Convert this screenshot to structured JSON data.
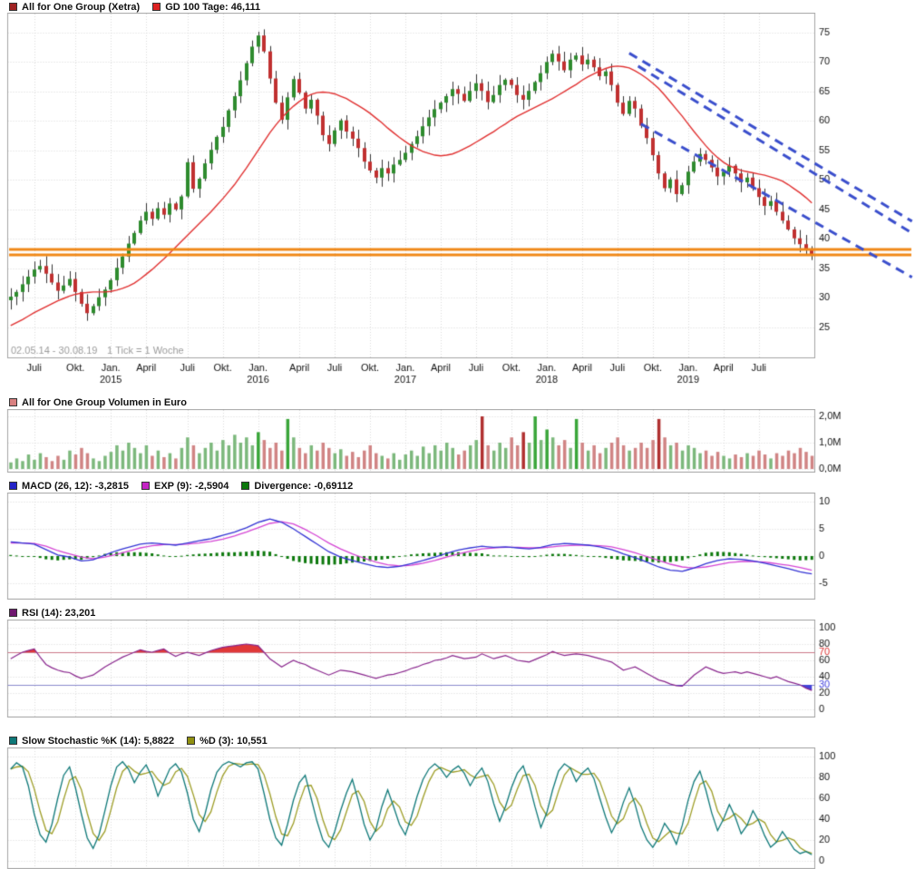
{
  "legends": {
    "main": [
      {
        "swatch": "#a02222",
        "label": "All for One Group (Xetra)"
      },
      {
        "swatch": "#dd2222",
        "label": "GD 100 Tage: 46,111"
      }
    ],
    "volume": [
      {
        "swatch": "#d88080",
        "label": "All for One Group Volumen in Euro"
      }
    ],
    "macd": [
      {
        "swatch": "#2424c8",
        "label": "MACD (26, 12): -3,2815"
      },
      {
        "swatch": "#c424c4",
        "label": "EXP (9): -2,5904"
      },
      {
        "swatch": "#0c780c",
        "label": "Divergence: -0,69112"
      }
    ],
    "rsi": [
      {
        "swatch": "#701870",
        "label": "RSI (14): 23,201"
      }
    ],
    "stoch": [
      {
        "swatch": "#0e7878",
        "label": "Slow Stochastic %K (14): 5,8822"
      },
      {
        "swatch": "#909010",
        "label": "%D (3): 10,551"
      }
    ]
  },
  "colors": {
    "grid": "#d9d9d9",
    "border": "#a3a3a3",
    "axis_text": "#111111",
    "note_text": "#9b9b9b",
    "candle_up": "#2e8b2e",
    "candle_down": "#c03030",
    "wick": "#333333",
    "ma": "#e03030",
    "hline": "#f08818",
    "trend": "#3a4ecc",
    "vol_up": "#7cb87c",
    "vol_down": "#d08484",
    "vol_up_hi": "#3aa63a",
    "vol_down_hi": "#b03030",
    "macd": "#3434d4",
    "macd_signal": "#d444d4",
    "macd_hist": "#0c780c",
    "rsi": "#88248c",
    "rsi_hi_line": "#cc7788",
    "rsi_lo_line": "#8888cc",
    "rsi_hi_fill": "#e03838",
    "rsi_lo_fill": "#4444d8",
    "rsi_hi_label": "#dd3333",
    "rsi_lo_label": "#4444dd",
    "stoch_k": "#0e7878",
    "stoch_d": "#9c9c24"
  },
  "chart_data": {
    "type": "candlestick+indicators",
    "title": "All for One Group (Xetra)",
    "interval": "1 Tick = 1 Woche",
    "date_range": "02.05.14 - 30.08.19",
    "footnote": "02.05.14 - 30.08.19",
    "tick_note": "1 Tick = 1 Woche",
    "x_ticks": [
      {
        "i": 4,
        "m": "Juli"
      },
      {
        "i": 11,
        "m": "Okt."
      },
      {
        "i": 17,
        "m": "Jan.",
        "y": "2015"
      },
      {
        "i": 23,
        "m": "April"
      },
      {
        "i": 30,
        "m": "Juli"
      },
      {
        "i": 36,
        "m": "Okt."
      },
      {
        "i": 42,
        "m": "Jan.",
        "y": "2016"
      },
      {
        "i": 49,
        "m": "April"
      },
      {
        "i": 55,
        "m": "Juli"
      },
      {
        "i": 61,
        "m": "Okt."
      },
      {
        "i": 67,
        "m": "Jan.",
        "y": "2017"
      },
      {
        "i": 73,
        "m": "April"
      },
      {
        "i": 79,
        "m": "Juli"
      },
      {
        "i": 85,
        "m": "Okt."
      },
      {
        "i": 91,
        "m": "Jan.",
        "y": "2018"
      },
      {
        "i": 97,
        "m": "April"
      },
      {
        "i": 103,
        "m": "Juli"
      },
      {
        "i": 109,
        "m": "Okt."
      },
      {
        "i": 115,
        "m": "Jan.",
        "y": "2019"
      },
      {
        "i": 121,
        "m": "April"
      },
      {
        "i": 127,
        "m": "Juli"
      }
    ],
    "price": {
      "ylim": [
        19.9,
        77.9
      ],
      "yticks": [
        75,
        70,
        65,
        60,
        55,
        50,
        45,
        40,
        35,
        30,
        25
      ],
      "close": [
        30.2,
        31.0,
        32.3,
        33.6,
        34.8,
        35.4,
        34.1,
        32.6,
        31.2,
        32.1,
        33.2,
        31.0,
        29.0,
        27.4,
        28.6,
        30.1,
        31.4,
        33.0,
        35.1,
        37.0,
        39.2,
        41.0,
        43.1,
        44.6,
        43.4,
        45.2,
        44.1,
        46.0,
        45.0,
        47.2,
        53.0,
        48.5,
        50.2,
        52.8,
        55.1,
        57.3,
        59.0,
        61.8,
        64.2,
        66.9,
        69.8,
        72.6,
        74.5,
        71.8,
        67.2,
        63.1,
        60.2,
        64.0,
        67.1,
        64.8,
        62.1,
        63.6,
        60.9,
        57.6,
        56.1,
        58.4,
        60.1,
        58.2,
        57.0,
        55.4,
        53.1,
        51.6,
        50.4,
        52.0,
        51.1,
        52.6,
        53.4,
        54.6,
        56.1,
        57.4,
        59.1,
        60.6,
        62.0,
        63.1,
        64.2,
        65.4,
        64.6,
        63.4,
        65.1,
        66.4,
        65.1,
        63.2,
        64.4,
        66.1,
        67.0,
        66.1,
        64.4,
        63.6,
        65.1,
        66.6,
        68.1,
        70.0,
        71.4,
        70.1,
        68.6,
        70.4,
        71.1,
        69.6,
        70.4,
        69.1,
        67.6,
        68.4,
        66.1,
        63.1,
        61.2,
        63.4,
        62.1,
        59.2,
        57.1,
        54.2,
        51.1,
        48.6,
        50.1,
        47.6,
        49.1,
        51.4,
        53.1,
        54.4,
        53.4,
        52.1,
        50.6,
        51.4,
        52.4,
        51.1,
        49.6,
        50.4,
        48.6,
        47.1,
        45.6,
        46.4,
        44.6,
        43.1,
        41.6,
        40.1,
        39.1,
        38.1,
        37.4
      ],
      "ma100": [
        25.3,
        25.8,
        26.3,
        26.9,
        27.5,
        28.0,
        28.5,
        29.0,
        29.5,
        29.9,
        30.3,
        30.6,
        30.8,
        30.9,
        31.0,
        31.0,
        31.0,
        31.1,
        31.3,
        31.6,
        32.0,
        32.5,
        33.2,
        34.0,
        34.8,
        35.7,
        36.6,
        37.6,
        38.6,
        39.6,
        40.6,
        41.6,
        42.6,
        43.6,
        44.6,
        45.7,
        46.8,
        48.0,
        49.2,
        50.6,
        52.0,
        53.5,
        55.0,
        56.5,
        58.0,
        59.3,
        60.5,
        61.6,
        62.5,
        63.3,
        64.0,
        64.5,
        64.8,
        64.9,
        64.8,
        64.6,
        64.2,
        63.8,
        63.2,
        62.6,
        62.0,
        61.3,
        60.5,
        59.7,
        58.8,
        58.0,
        57.2,
        56.5,
        55.8,
        55.3,
        54.8,
        54.5,
        54.2,
        54.1,
        54.2,
        54.4,
        54.8,
        55.3,
        55.8,
        56.4,
        57.0,
        57.6,
        58.2,
        58.9,
        59.5,
        60.2,
        60.8,
        61.3,
        61.8,
        62.3,
        62.8,
        63.3,
        63.8,
        64.4,
        65.0,
        65.6,
        66.2,
        66.9,
        67.5,
        68.0,
        68.5,
        68.9,
        69.2,
        69.3,
        69.2,
        69.0,
        68.5,
        67.9,
        67.2,
        66.4,
        65.5,
        64.4,
        63.2,
        62.0,
        60.8,
        59.5,
        58.2,
        57.0,
        55.8,
        54.7,
        53.8,
        53.0,
        52.4,
        52.0,
        51.6,
        51.4,
        51.2,
        51.0,
        50.8,
        50.5,
        50.2,
        49.8,
        49.2,
        48.5,
        47.8,
        47.0,
        46.1
      ]
    },
    "overlays": {
      "hlines": [
        38.2,
        37.3
      ],
      "trendlines": [
        {
          "i1": 105.0,
          "v1": 71.5,
          "i2": 153,
          "v2": 43.0
        },
        {
          "i1": 106.5,
          "v1": 69.3,
          "i2": 153,
          "v2": 41.0
        },
        {
          "i1": 107.0,
          "v1": 59.5,
          "i2": 153,
          "v2": 33.5
        }
      ]
    },
    "volume": {
      "unit": "Euro",
      "yticks": [
        {
          "v": 2,
          "label": "2,0M"
        },
        {
          "v": 1,
          "label": "1,0M"
        },
        {
          "v": 0,
          "label": "0,0M"
        }
      ],
      "values": [
        0.25,
        0.4,
        0.3,
        0.55,
        0.35,
        0.6,
        0.45,
        0.3,
        0.5,
        0.35,
        0.7,
        0.55,
        0.8,
        0.6,
        0.4,
        0.3,
        0.5,
        0.65,
        0.9,
        0.7,
        1.0,
        0.8,
        0.6,
        0.9,
        0.5,
        0.7,
        0.45,
        0.6,
        0.4,
        0.8,
        1.2,
        0.9,
        0.6,
        0.8,
        1.0,
        0.7,
        1.1,
        0.9,
        1.3,
        1.0,
        1.2,
        0.9,
        1.4,
        1.1,
        0.8,
        1.0,
        0.7,
        1.9,
        1.2,
        0.8,
        0.6,
        0.9,
        0.7,
        1.0,
        0.8,
        0.6,
        0.75,
        0.5,
        0.65,
        0.45,
        0.7,
        0.9,
        0.6,
        0.5,
        0.4,
        0.6,
        0.35,
        0.55,
        0.7,
        0.5,
        0.85,
        0.6,
        0.9,
        0.7,
        1.0,
        0.8,
        0.55,
        0.7,
        0.9,
        1.1,
        2.0,
        0.9,
        0.7,
        1.0,
        0.8,
        1.2,
        0.9,
        1.4,
        1.0,
        2.0,
        1.1,
        1.5,
        1.2,
        0.9,
        1.1,
        0.8,
        1.9,
        1.0,
        0.7,
        0.9,
        0.6,
        0.8,
        1.0,
        1.2,
        0.9,
        0.7,
        0.8,
        1.0,
        0.8,
        1.1,
        1.9,
        1.2,
        0.9,
        1.0,
        0.7,
        0.9,
        0.8,
        0.6,
        0.7,
        0.5,
        0.65,
        0.5,
        0.4,
        0.55,
        0.45,
        0.6,
        0.5,
        0.7,
        0.55,
        0.4,
        0.6,
        0.5,
        0.7,
        0.6,
        0.8,
        0.65,
        0.5
      ]
    },
    "macd": {
      "yticks": [
        10,
        5,
        0,
        -5
      ],
      "macd": [
        2.6,
        2.5,
        2.4,
        2.3,
        2.2,
        1.7,
        1.2,
        0.7,
        0.2,
        0.0,
        -0.2,
        -0.55,
        -0.9,
        -0.8,
        -0.7,
        -0.25,
        0.2,
        0.6,
        1.0,
        1.3,
        1.6,
        1.9,
        2.2,
        2.3,
        2.4,
        2.3,
        2.2,
        2.1,
        2.0,
        2.2,
        2.4,
        2.6,
        2.8,
        3.0,
        3.2,
        3.5,
        3.8,
        4.1,
        4.4,
        4.8,
        5.2,
        5.7,
        6.2,
        6.5,
        6.8,
        6.5,
        6.2,
        5.6,
        5.0,
        4.3,
        3.6,
        2.9,
        2.2,
        1.5,
        0.8,
        0.3,
        -0.2,
        -0.5,
        -0.8,
        -1.1,
        -1.4,
        -1.65,
        -1.9,
        -2.0,
        -2.1,
        -2.0,
        -1.9,
        -1.65,
        -1.4,
        -1.1,
        -0.8,
        -0.5,
        -0.2,
        0.15,
        0.5,
        0.8,
        1.1,
        1.3,
        1.5,
        1.65,
        1.8,
        1.7,
        1.6,
        1.65,
        1.7,
        1.6,
        1.5,
        1.4,
        1.3,
        1.45,
        1.6,
        1.85,
        2.1,
        2.2,
        2.3,
        2.25,
        2.2,
        2.1,
        2.0,
        1.85,
        1.7,
        1.45,
        1.2,
        0.8,
        0.4,
        0.05,
        -0.3,
        -0.7,
        -1.1,
        -1.55,
        -2.0,
        -2.3,
        -2.6,
        -2.7,
        -2.8,
        -2.5,
        -2.2,
        -1.8,
        -1.4,
        -1.1,
        -0.8,
        -0.65,
        -0.5,
        -0.55,
        -0.6,
        -0.75,
        -0.9,
        -1.1,
        -1.3,
        -1.55,
        -1.8,
        -2.05,
        -2.3,
        -2.6,
        -2.9,
        -3.1,
        -3.28
      ],
      "signal": [
        2.4,
        2.4,
        2.4,
        2.35,
        2.3,
        2.05,
        1.8,
        1.4,
        1.0,
        0.7,
        0.4,
        0.1,
        -0.2,
        -0.35,
        -0.5,
        -0.35,
        -0.2,
        0.05,
        0.3,
        0.6,
        0.9,
        1.2,
        1.5,
        1.7,
        1.9,
        2.0,
        2.1,
        2.1,
        2.1,
        2.15,
        2.2,
        2.3,
        2.4,
        2.55,
        2.7,
        2.9,
        3.1,
        3.4,
        3.7,
        4.05,
        4.4,
        4.8,
        5.2,
        5.6,
        6.0,
        6.15,
        6.3,
        6.1,
        5.9,
        5.4,
        4.9,
        4.3,
        3.7,
        3.05,
        2.4,
        1.85,
        1.3,
        0.85,
        0.4,
        0.0,
        -0.4,
        -0.75,
        -1.1,
        -1.35,
        -1.6,
        -1.7,
        -1.8,
        -1.75,
        -1.7,
        -1.5,
        -1.3,
        -1.05,
        -0.8,
        -0.5,
        -0.2,
        0.1,
        0.4,
        0.65,
        0.9,
        1.1,
        1.3,
        1.4,
        1.5,
        1.55,
        1.6,
        1.6,
        1.6,
        1.55,
        1.5,
        1.5,
        1.5,
        1.6,
        1.7,
        1.8,
        1.9,
        1.95,
        2.0,
        2.0,
        2.0,
        1.95,
        1.9,
        1.8,
        1.7,
        1.45,
        1.2,
        0.9,
        0.6,
        0.25,
        -0.1,
        -0.45,
        -0.8,
        -1.15,
        -1.5,
        -1.75,
        -2.0,
        -2.1,
        -2.2,
        -2.1,
        -2.0,
        -1.8,
        -1.6,
        -1.4,
        -1.2,
        -1.1,
        -1.0,
        -1.0,
        -1.0,
        -1.05,
        -1.1,
        -1.25,
        -1.4,
        -1.55,
        -1.7,
        -1.9,
        -2.1,
        -2.35,
        -2.59
      ]
    },
    "rsi": {
      "yticks": [
        100,
        80,
        60,
        40,
        20,
        0
      ],
      "upper": 70,
      "lower": 30,
      "values": [
        62,
        66,
        70,
        72,
        74,
        64,
        55,
        51,
        48,
        46,
        45,
        41,
        38,
        40,
        42,
        47,
        52,
        56,
        60,
        64,
        67,
        70,
        73,
        71,
        70,
        72,
        74,
        69,
        65,
        68,
        70,
        68,
        66,
        69,
        72,
        74,
        76,
        77,
        78,
        79,
        80,
        79,
        78,
        70,
        62,
        57,
        52,
        56,
        60,
        57,
        55,
        51,
        48,
        45,
        42,
        45,
        48,
        47,
        46,
        44,
        42,
        40,
        38,
        40,
        42,
        43,
        45,
        47,
        50,
        52,
        55,
        57,
        60,
        61,
        63,
        66,
        64,
        62,
        63,
        64,
        68,
        65,
        62,
        64,
        66,
        63,
        60,
        59,
        58,
        61,
        64,
        67,
        71,
        68,
        66,
        67,
        68,
        67,
        66,
        64,
        62,
        60,
        58,
        53,
        48,
        50,
        52,
        48,
        44,
        40,
        36,
        34,
        31,
        29,
        28.5,
        35,
        42,
        47,
        52,
        49,
        46,
        44,
        45,
        46,
        44,
        46,
        44,
        42,
        40,
        38,
        40,
        37,
        34,
        32,
        30,
        26,
        23.2
      ]
    },
    "stoch": {
      "yticks": [
        100,
        80,
        60,
        40,
        20,
        0
      ],
      "k": [
        88,
        94,
        90,
        72,
        45,
        25,
        18,
        35,
        60,
        82,
        90,
        70,
        45,
        22,
        12,
        25,
        48,
        72,
        90,
        95,
        88,
        75,
        85,
        92,
        80,
        62,
        75,
        88,
        93,
        85,
        65,
        40,
        28,
        45,
        68,
        85,
        92,
        95,
        93,
        90,
        94,
        95,
        88,
        65,
        40,
        22,
        15,
        35,
        58,
        75,
        82,
        60,
        38,
        20,
        13,
        28,
        48,
        65,
        78,
        58,
        35,
        20,
        30,
        52,
        68,
        52,
        35,
        25,
        42,
        62,
        78,
        88,
        93,
        88,
        80,
        87,
        91,
        84,
        72,
        82,
        89,
        76,
        55,
        38,
        52,
        70,
        84,
        91,
        74,
        52,
        32,
        46,
        68,
        86,
        93,
        89,
        76,
        84,
        89,
        79,
        60,
        42,
        27,
        38,
        56,
        70,
        54,
        33,
        20,
        13,
        22,
        36,
        28,
        16,
        34,
        58,
        76,
        86,
        68,
        46,
        29,
        40,
        54,
        42,
        26,
        34,
        48,
        38,
        24,
        13,
        18,
        28,
        20,
        11,
        7,
        9,
        5.9
      ]
    }
  }
}
